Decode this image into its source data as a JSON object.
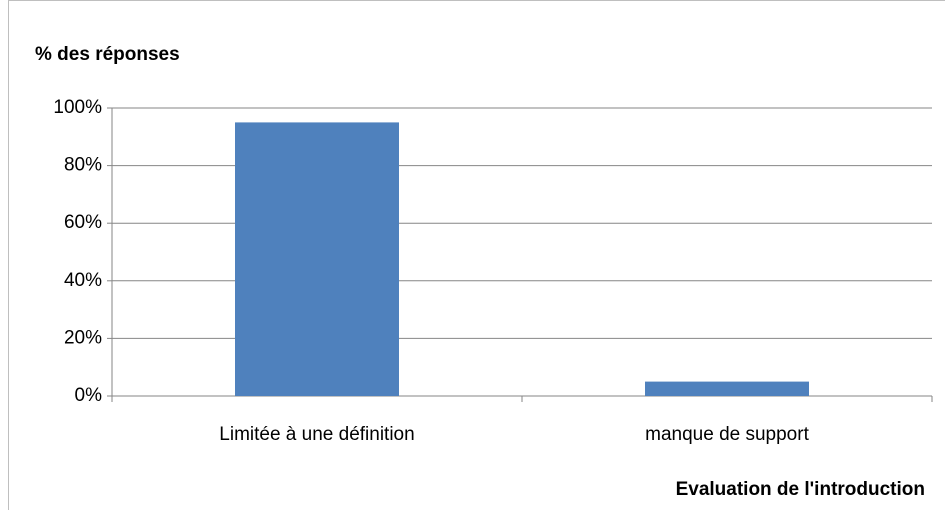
{
  "chart_data": {
    "type": "bar",
    "title": "% des réponses",
    "x_label": "Evaluation de l'introduction",
    "categories": [
      "Limitée à une définition",
      "manque de support"
    ],
    "values": [
      95,
      5
    ],
    "color": "#4f81bd",
    "ylim": [
      0,
      100
    ],
    "yticks": [
      {
        "value": 0,
        "label": "0%"
      },
      {
        "value": 20,
        "label": "20%"
      },
      {
        "value": 40,
        "label": "40%"
      },
      {
        "value": 60,
        "label": "60%"
      },
      {
        "value": 80,
        "label": "80%"
      },
      {
        "value": 100,
        "label": "100%"
      }
    ],
    "grid": true
  }
}
